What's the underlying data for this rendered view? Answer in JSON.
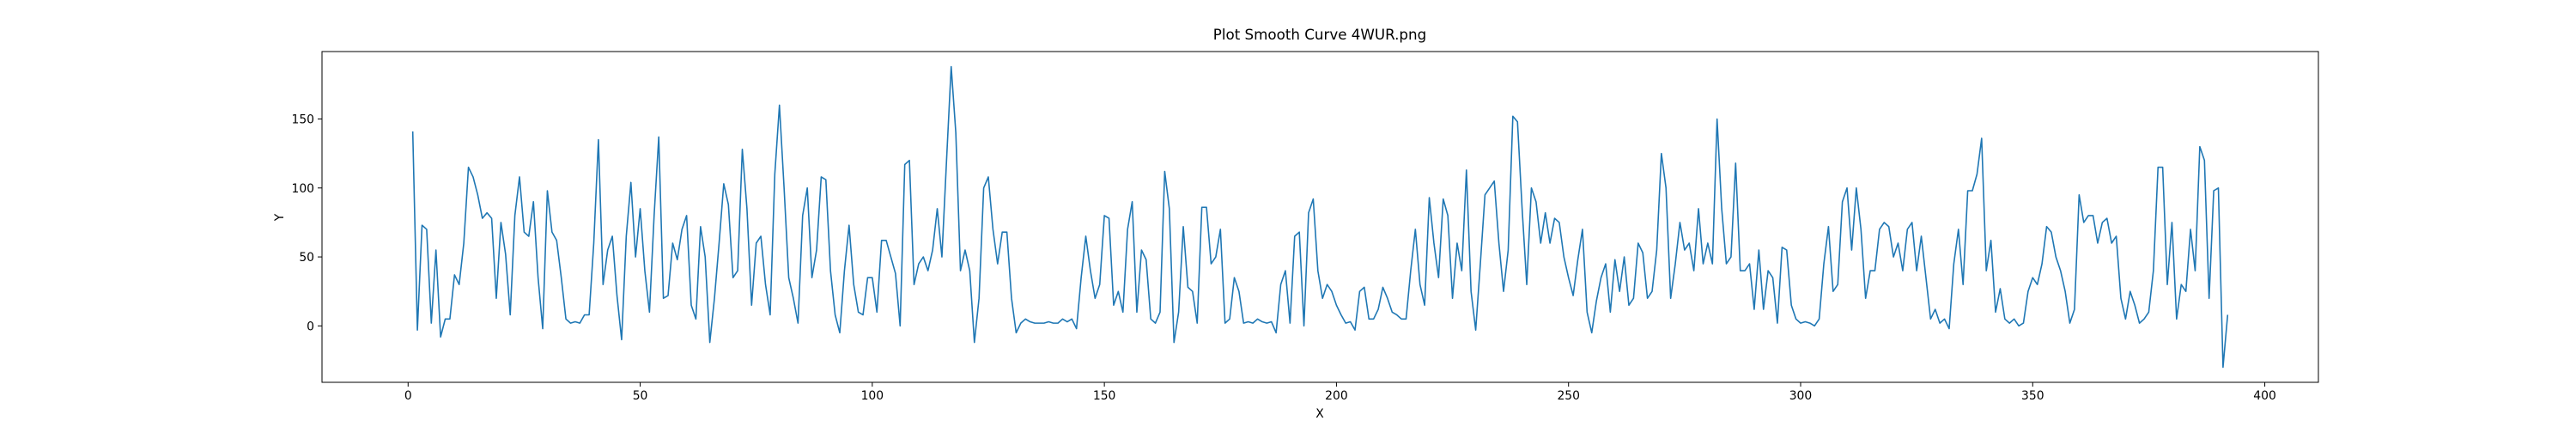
{
  "chart_data": {
    "type": "line",
    "title": "Plot Smooth Curve 4WUR.png",
    "x_label": "X",
    "y_label": "Y",
    "xlim": [
      -18.55,
      411.55
    ],
    "xticks": [
      0,
      50,
      100,
      150,
      200,
      250,
      300,
      350,
      400
    ],
    "ylim": [
      -40.9,
      198.9
    ],
    "yticks": [
      0,
      50,
      100,
      150
    ],
    "grid": false,
    "x": [
      1,
      2,
      3,
      4,
      5,
      6,
      7,
      8,
      9,
      10,
      11,
      12,
      13,
      14,
      15,
      16,
      17,
      18,
      19,
      20,
      21,
      22,
      23,
      24,
      25,
      26,
      27,
      28,
      29,
      30,
      31,
      32,
      33,
      34,
      35,
      36,
      37,
      38,
      39,
      40,
      41,
      42,
      43,
      44,
      45,
      46,
      47,
      48,
      49,
      50,
      51,
      52,
      53,
      54,
      55,
      56,
      57,
      58,
      59,
      60,
      61,
      62,
      63,
      64,
      65,
      66,
      67,
      68,
      69,
      70,
      71,
      72,
      73,
      74,
      75,
      76,
      77,
      78,
      79,
      80,
      81,
      82,
      83,
      84,
      85,
      86,
      87,
      88,
      89,
      90,
      91,
      92,
      93,
      94,
      95,
      96,
      97,
      98,
      99,
      100,
      101,
      102,
      103,
      104,
      105,
      106,
      107,
      108,
      109,
      110,
      111,
      112,
      113,
      114,
      115,
      116,
      117,
      118,
      119,
      120,
      121,
      122,
      123,
      124,
      125,
      126,
      127,
      128,
      129,
      130,
      131,
      132,
      133,
      134,
      135,
      136,
      137,
      138,
      139,
      140,
      141,
      142,
      143,
      144,
      145,
      146,
      147,
      148,
      149,
      150,
      151,
      152,
      153,
      154,
      155,
      156,
      157,
      158,
      159,
      160,
      161,
      162,
      163,
      164,
      165,
      166,
      167,
      168,
      169,
      170,
      171,
      172,
      173,
      174,
      175,
      176,
      177,
      178,
      179,
      180,
      181,
      182,
      183,
      184,
      185,
      186,
      187,
      188,
      189,
      190,
      191,
      192,
      193,
      194,
      195,
      196,
      197,
      198,
      199,
      200,
      201,
      202,
      203,
      204,
      205,
      206,
      207,
      208,
      209,
      210,
      211,
      212,
      213,
      214,
      215,
      216,
      217,
      218,
      219,
      220,
      221,
      222,
      223,
      224,
      225,
      226,
      227,
      228,
      229,
      230,
      231,
      232,
      233,
      234,
      235,
      236,
      237,
      238,
      239,
      240,
      241,
      242,
      243,
      244,
      245,
      246,
      247,
      248,
      249,
      250,
      251,
      252,
      253,
      254,
      255,
      256,
      257,
      258,
      259,
      260,
      261,
      262,
      263,
      264,
      265,
      266,
      267,
      268,
      269,
      270,
      271,
      272,
      273,
      274,
      275,
      276,
      277,
      278,
      279,
      280,
      281,
      282,
      283,
      284,
      285,
      286,
      287,
      288,
      289,
      290,
      291,
      292,
      293,
      294,
      295,
      296,
      297,
      298,
      299,
      300,
      301,
      302,
      303,
      304,
      305,
      306,
      307,
      308,
      309,
      310,
      311,
      312,
      313,
      314,
      315,
      316,
      317,
      318,
      319,
      320,
      321,
      322,
      323,
      324,
      325,
      326,
      327,
      328,
      329,
      330,
      331,
      332,
      333,
      334,
      335,
      336,
      337,
      338,
      339,
      340,
      341,
      342,
      343,
      344,
      345,
      346,
      347,
      348,
      349,
      350,
      351,
      352,
      353,
      354,
      355,
      356,
      357,
      358,
      359,
      360,
      361,
      362,
      363,
      364,
      365,
      366,
      367,
      368,
      369,
      370,
      371,
      372,
      373,
      374,
      375,
      376,
      377,
      378,
      379,
      380,
      381,
      382,
      383,
      384,
      385,
      386,
      387,
      388,
      389,
      390,
      391,
      392
    ],
    "series": [
      {
        "color": "#1f77b4",
        "values": [
          141,
          -3,
          73,
          70,
          2,
          55,
          -8,
          5,
          5,
          37,
          30,
          60,
          115,
          108,
          95,
          78,
          82,
          78,
          20,
          75,
          52,
          8,
          80,
          108,
          68,
          65,
          90,
          35,
          -2,
          98,
          68,
          62,
          35,
          5,
          2,
          3,
          2,
          8,
          8,
          60,
          135,
          30,
          55,
          65,
          22,
          -10,
          65,
          104,
          50,
          85,
          40,
          10,
          80,
          137,
          20,
          22,
          60,
          48,
          70,
          80,
          15,
          5,
          72,
          50,
          -12,
          20,
          60,
          103,
          88,
          35,
          40,
          128,
          85,
          15,
          60,
          65,
          30,
          8,
          110,
          160,
          100,
          35,
          20,
          2,
          80,
          100,
          35,
          55,
          108,
          106,
          40,
          8,
          -5,
          40,
          73,
          30,
          10,
          8,
          35,
          35,
          10,
          62,
          62,
          50,
          38,
          0,
          117,
          120,
          30,
          45,
          50,
          40,
          55,
          85,
          50,
          120,
          188,
          140,
          40,
          55,
          40,
          -12,
          20,
          100,
          108,
          70,
          45,
          68,
          68,
          20,
          -5,
          2,
          5,
          3,
          2,
          2,
          2,
          3,
          2,
          2,
          5,
          3,
          5,
          -2,
          35,
          65,
          40,
          20,
          30,
          80,
          78,
          15,
          25,
          10,
          70,
          90,
          10,
          55,
          48,
          5,
          2,
          10,
          112,
          85,
          -12,
          10,
          72,
          28,
          25,
          2,
          86,
          86,
          45,
          50,
          70,
          2,
          5,
          35,
          25,
          2,
          3,
          2,
          5,
          3,
          2,
          3,
          -5,
          30,
          40,
          2,
          65,
          68,
          0,
          82,
          92,
          40,
          20,
          30,
          25,
          15,
          8,
          2,
          3,
          -3,
          25,
          28,
          5,
          5,
          12,
          28,
          20,
          10,
          8,
          5,
          5,
          40,
          70,
          30,
          15,
          93,
          60,
          35,
          92,
          80,
          20,
          60,
          40,
          113,
          25,
          -3,
          45,
          95,
          100,
          105,
          60,
          25,
          55,
          152,
          148,
          85,
          30,
          100,
          90,
          60,
          82,
          60,
          78,
          75,
          50,
          35,
          22,
          48,
          70,
          10,
          -5,
          18,
          35,
          45,
          10,
          48,
          25,
          50,
          15,
          20,
          60,
          53,
          20,
          25,
          55,
          125,
          100,
          20,
          45,
          75,
          55,
          60,
          40,
          85,
          45,
          60,
          45,
          150,
          85,
          45,
          50,
          118,
          40,
          40,
          45,
          12,
          55,
          12,
          40,
          35,
          2,
          57,
          55,
          15,
          5,
          2,
          3,
          2,
          0,
          5,
          45,
          72,
          25,
          30,
          90,
          100,
          55,
          100,
          70,
          20,
          40,
          40,
          70,
          75,
          72,
          50,
          60,
          40,
          70,
          75,
          40,
          65,
          35,
          5,
          12,
          2,
          5,
          -2,
          45,
          70,
          30,
          98,
          98,
          110,
          136,
          40,
          62,
          10,
          27,
          5,
          2,
          5,
          0,
          2,
          25,
          35,
          30,
          45,
          72,
          68,
          50,
          40,
          25,
          2,
          12,
          95,
          75,
          80,
          80,
          60,
          75,
          78,
          60,
          65,
          20,
          5,
          25,
          15,
          2,
          5,
          10,
          40,
          115,
          115,
          30,
          75,
          5,
          30,
          25,
          70,
          40,
          130,
          120,
          20,
          98,
          100,
          -30,
          8
        ]
      }
    ]
  }
}
